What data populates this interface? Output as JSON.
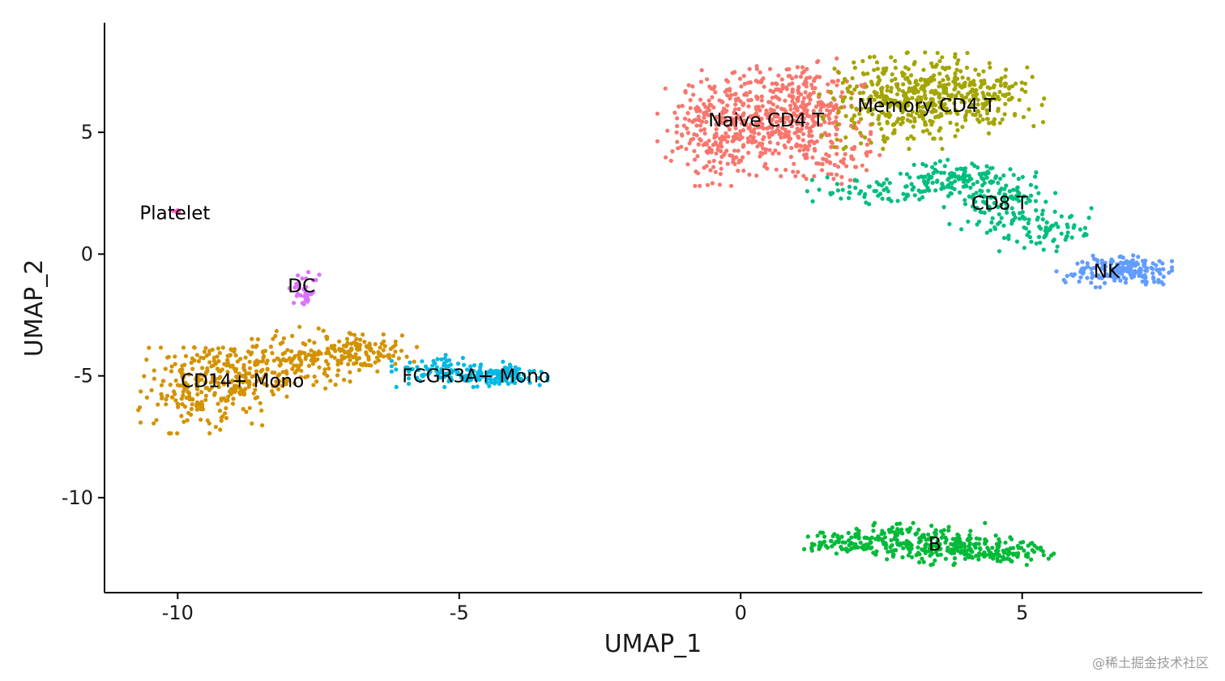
{
  "chart_data": {
    "type": "scatter",
    "title": "",
    "xlabel": "UMAP_1",
    "ylabel": "UMAP_2",
    "xlim": [
      -11.3,
      8.2
    ],
    "ylim": [
      -13.9,
      9.5
    ],
    "grid": false,
    "legend": "none",
    "x_ticks": [
      {
        "value": -10,
        "label": "-10"
      },
      {
        "value": -5,
        "label": "-5"
      },
      {
        "value": 0,
        "label": "0"
      },
      {
        "value": 5,
        "label": "5"
      }
    ],
    "y_ticks": [
      {
        "value": 5,
        "label": "5"
      },
      {
        "value": 0,
        "label": "0"
      },
      {
        "value": -5,
        "label": "-5"
      },
      {
        "value": -10,
        "label": "-10"
      }
    ],
    "series": [
      {
        "name": "Naive CD4 T",
        "color": "#F8766D",
        "label_pos": [
          0.45,
          5.5
        ],
        "n": 700,
        "blobs": [
          {
            "cx": 0.3,
            "cy": 5.4,
            "sx": 0.65,
            "sy": 1.0,
            "w": 0.35
          },
          {
            "cx": 1.1,
            "cy": 5.9,
            "sx": 0.55,
            "sy": 1.0,
            "w": 0.35
          },
          {
            "cx": -0.6,
            "cy": 5.0,
            "sx": 0.4,
            "sy": 1.0,
            "w": 0.2
          },
          {
            "cx": 1.7,
            "cy": 3.7,
            "sx": 0.35,
            "sy": 0.5,
            "w": 0.1
          }
        ]
      },
      {
        "name": "Memory CD4 T",
        "color": "#A3A500",
        "label_pos": [
          3.3,
          6.1
        ],
        "n": 520,
        "blobs": [
          {
            "cx": 2.6,
            "cy": 6.3,
            "sx": 0.55,
            "sy": 0.9,
            "w": 0.4
          },
          {
            "cx": 3.6,
            "cy": 6.5,
            "sx": 0.5,
            "sy": 0.8,
            "w": 0.4
          },
          {
            "cx": 4.4,
            "cy": 6.3,
            "sx": 0.45,
            "sy": 0.7,
            "w": 0.2
          }
        ]
      },
      {
        "name": "CD8 T",
        "color": "#00BF7D",
        "label_pos": [
          4.6,
          2.1
        ],
        "n": 360,
        "blobs": [
          {
            "cx": 3.8,
            "cy": 3.1,
            "sx": 0.55,
            "sy": 0.35,
            "w": 0.3
          },
          {
            "cx": 4.6,
            "cy": 2.2,
            "sx": 0.45,
            "sy": 0.6,
            "w": 0.35
          },
          {
            "cx": 5.4,
            "cy": 1.0,
            "sx": 0.45,
            "sy": 0.4,
            "w": 0.2
          },
          {
            "cx": 2.4,
            "cy": 2.6,
            "sx": 0.6,
            "sy": 0.25,
            "w": 0.15
          }
        ]
      },
      {
        "name": "NK",
        "color": "#619CFF",
        "label_pos": [
          6.5,
          -0.7
        ],
        "n": 180,
        "blobs": [
          {
            "cx": 6.6,
            "cy": -0.7,
            "sx": 0.45,
            "sy": 0.3,
            "w": 0.7
          },
          {
            "cx": 7.0,
            "cy": -0.6,
            "sx": 0.3,
            "sy": 0.25,
            "w": 0.3
          }
        ]
      },
      {
        "name": "B",
        "color": "#00BA38",
        "label_pos": [
          3.45,
          -11.9
        ],
        "n": 400,
        "blobs": [
          {
            "cx": 2.8,
            "cy": -11.7,
            "sx": 0.7,
            "sy": 0.3,
            "w": 0.4
          },
          {
            "cx": 3.9,
            "cy": -12.1,
            "sx": 0.6,
            "sy": 0.3,
            "w": 0.35
          },
          {
            "cx": 1.8,
            "cy": -11.9,
            "sx": 0.35,
            "sy": 0.18,
            "w": 0.1
          },
          {
            "cx": 4.8,
            "cy": -12.3,
            "sx": 0.35,
            "sy": 0.2,
            "w": 0.15
          }
        ]
      },
      {
        "name": "CD14+ Mono",
        "color": "#D39200",
        "label_pos": [
          -8.85,
          -5.2
        ],
        "n": 560,
        "blobs": [
          {
            "cx": -9.6,
            "cy": -5.6,
            "sx": 0.5,
            "sy": 0.8,
            "w": 0.35
          },
          {
            "cx": -8.6,
            "cy": -4.8,
            "sx": 0.6,
            "sy": 0.6,
            "w": 0.3
          },
          {
            "cx": -7.5,
            "cy": -4.2,
            "sx": 0.5,
            "sy": 0.55,
            "w": 0.2
          },
          {
            "cx": -6.6,
            "cy": -3.9,
            "sx": 0.45,
            "sy": 0.3,
            "w": 0.15
          }
        ]
      },
      {
        "name": "FCGR3A+ Mono",
        "color": "#00B9E3",
        "label_pos": [
          -4.7,
          -5.0
        ],
        "n": 200,
        "blobs": [
          {
            "cx": -5.1,
            "cy": -4.8,
            "sx": 0.5,
            "sy": 0.3,
            "w": 0.55
          },
          {
            "cx": -4.2,
            "cy": -5.0,
            "sx": 0.35,
            "sy": 0.2,
            "w": 0.45
          }
        ]
      },
      {
        "name": "DC",
        "color": "#DB72FB",
        "label_pos": [
          -7.8,
          -1.3
        ],
        "n": 32,
        "blobs": [
          {
            "cx": -7.75,
            "cy": -1.4,
            "sx": 0.12,
            "sy": 0.3,
            "w": 1.0
          }
        ]
      },
      {
        "name": "Platelet",
        "color": "#FF61C3",
        "label_pos": [
          -10.05,
          1.7
        ],
        "n": 5,
        "blobs": [
          {
            "cx": -10.0,
            "cy": 1.75,
            "sx": 0.05,
            "sy": 0.05,
            "w": 1.0
          }
        ]
      }
    ]
  },
  "watermark": "@稀土掘金技术社区"
}
